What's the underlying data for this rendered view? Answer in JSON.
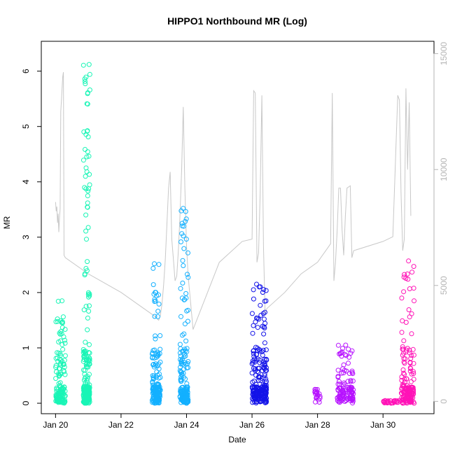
{
  "chart_data": {
    "type": "scatter",
    "title": "HIPPO1 Northbound MR (Log)",
    "xlabel": "Date",
    "ylabel": "MR",
    "x_ticks": [
      "Jan 20",
      "Jan 22",
      "Jan 24",
      "Jan 26",
      "Jan 28",
      "Jan 30"
    ],
    "x_tick_days": [
      20,
      22,
      24,
      26,
      28,
      30
    ],
    "xlim": [
      19.8,
      31.3
    ],
    "y_ticks": [
      0,
      1,
      2,
      3,
      4,
      5,
      6
    ],
    "ylim": [
      -0.05,
      6.4
    ],
    "y2_ticks": [
      0,
      5000,
      10000,
      15000
    ],
    "y2lim": [
      -200,
      15200
    ],
    "colors": {
      "flight1": "#19f5b6",
      "flight2": "#13b0ff",
      "flight3": "#1313e8",
      "flight4": "#b713ff",
      "flight5": "#ff13b7",
      "altitude_line": "#c8c8c8",
      "right_axis": "#b5b5b5"
    },
    "series": [
      {
        "color_key": "flight1",
        "clusters": [
          {
            "x_start": 20.0,
            "x_end": 20.3,
            "y_max": 1.85,
            "n": 140
          },
          {
            "x_start": 20.85,
            "x_end": 21.05,
            "y_max": 6.12,
            "n": 260
          }
        ]
      },
      {
        "color_key": "flight2",
        "clusters": [
          {
            "x_start": 22.95,
            "x_end": 23.2,
            "y_max": 2.52,
            "n": 160
          },
          {
            "x_start": 23.8,
            "x_end": 24.05,
            "y_max": 3.52,
            "n": 170
          }
        ]
      },
      {
        "color_key": "flight3",
        "clusters": [
          {
            "x_start": 26.0,
            "x_end": 26.45,
            "y_max": 2.15,
            "n": 230
          }
        ]
      },
      {
        "color_key": "flight4",
        "clusters": [
          {
            "x_start": 27.9,
            "x_end": 28.1,
            "y_max": 0.25,
            "n": 20
          },
          {
            "x_start": 28.6,
            "x_end": 29.1,
            "y_max": 1.05,
            "n": 120
          }
        ]
      },
      {
        "color_key": "flight5",
        "clusters": [
          {
            "x_start": 30.0,
            "x_end": 30.5,
            "y_max": 0.05,
            "n": 30
          },
          {
            "x_start": 30.55,
            "x_end": 30.95,
            "y_max": 2.57,
            "n": 170
          }
        ]
      }
    ],
    "altitude": [
      [
        20.0,
        8600
      ],
      [
        20.02,
        8200
      ],
      [
        20.04,
        8400
      ],
      [
        20.06,
        7700
      ],
      [
        20.08,
        8100
      ],
      [
        20.1,
        7300
      ],
      [
        20.12,
        7900
      ],
      [
        20.14,
        8300
      ],
      [
        20.16,
        12500
      ],
      [
        20.18,
        13000
      ],
      [
        20.2,
        13500
      ],
      [
        20.22,
        14000
      ],
      [
        20.24,
        14200
      ],
      [
        20.26,
        6300
      ],
      [
        20.3,
        6200
      ],
      [
        21.0,
        5500
      ],
      [
        22.0,
        4700
      ],
      [
        23.0,
        3700
      ],
      [
        23.15,
        3500
      ],
      [
        23.2,
        3700
      ],
      [
        23.25,
        4200
      ],
      [
        23.3,
        5000
      ],
      [
        23.35,
        6100
      ],
      [
        23.4,
        7600
      ],
      [
        23.45,
        9200
      ],
      [
        23.5,
        9900
      ],
      [
        23.55,
        7000
      ],
      [
        23.6,
        6100
      ],
      [
        23.65,
        5200
      ],
      [
        23.7,
        5400
      ],
      [
        23.75,
        6500
      ],
      [
        23.8,
        8000
      ],
      [
        23.85,
        10000
      ],
      [
        23.9,
        12700
      ],
      [
        23.95,
        9200
      ],
      [
        24.0,
        6700
      ],
      [
        24.05,
        5400
      ],
      [
        24.2,
        3100
      ],
      [
        25.0,
        6000
      ],
      [
        25.7,
        6900
      ],
      [
        26.0,
        7000
      ],
      [
        26.05,
        13400
      ],
      [
        26.1,
        13300
      ],
      [
        26.15,
        6000
      ],
      [
        26.2,
        6400
      ],
      [
        26.25,
        9000
      ],
      [
        26.3,
        13200
      ],
      [
        26.35,
        6700
      ],
      [
        26.4,
        3700
      ],
      [
        26.45,
        4000
      ],
      [
        27.0,
        4700
      ],
      [
        27.5,
        5500
      ],
      [
        28.0,
        6000
      ],
      [
        28.3,
        6600
      ],
      [
        28.4,
        6800
      ],
      [
        28.45,
        13300
      ],
      [
        28.5,
        5200
      ],
      [
        28.55,
        6000
      ],
      [
        28.6,
        7400
      ],
      [
        28.65,
        9200
      ],
      [
        28.7,
        9200
      ],
      [
        28.75,
        7400
      ],
      [
        28.8,
        6300
      ],
      [
        28.85,
        8000
      ],
      [
        28.9,
        9200
      ],
      [
        29.0,
        9300
      ],
      [
        29.05,
        6200
      ],
      [
        29.1,
        6500
      ],
      [
        30.0,
        6900
      ],
      [
        30.3,
        7100
      ],
      [
        30.45,
        13200
      ],
      [
        30.5,
        13000
      ],
      [
        30.55,
        9000
      ],
      [
        30.6,
        6500
      ],
      [
        30.65,
        7000
      ],
      [
        30.7,
        13500
      ],
      [
        30.75,
        10000
      ],
      [
        30.8,
        12900
      ],
      [
        30.85,
        8000
      ]
    ]
  }
}
